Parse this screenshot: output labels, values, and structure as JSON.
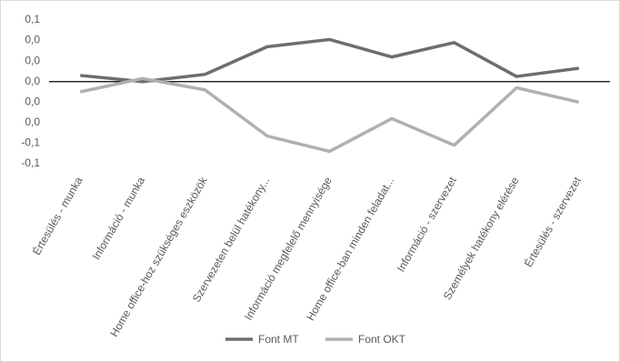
{
  "chart_data": {
    "type": "line",
    "categories": [
      "Értesülés - munka",
      "Információ - munka",
      "Home office-hoz szükséges eszközök",
      "Szervezeten belül hatékony...",
      "Információ megfelelő mennyisége",
      "Home office-ban minden feladat...",
      "Információ - szervezet",
      "Személyek hatékony elérése",
      "Értesülés - szervezet"
    ],
    "series": [
      {
        "name": "Font MT",
        "color": "#6d6d6d",
        "values": [
          0.006,
          0.0,
          0.007,
          0.034,
          0.041,
          0.024,
          0.038,
          0.005,
          0.013
        ]
      },
      {
        "name": "Font OKT",
        "color": "#b0b0b0",
        "values": [
          -0.01,
          0.003,
          -0.008,
          -0.053,
          -0.068,
          -0.036,
          -0.062,
          -0.006,
          -0.02
        ]
      }
    ],
    "ylim": [
      -0.08,
      0.06
    ],
    "yticks": [
      {
        "value": 0.06,
        "label": "0,1"
      },
      {
        "value": 0.04,
        "label": "0,0"
      },
      {
        "value": 0.02,
        "label": "0,0"
      },
      {
        "value": 0,
        "label": "0,0"
      },
      {
        "value": -0.02,
        "label": "0,0"
      },
      {
        "value": -0.04,
        "label": "0,0"
      },
      {
        "value": -0.06,
        "label": "-0,1"
      },
      {
        "value": -0.08,
        "label": "-0,1"
      }
    ],
    "legend": "bottom"
  }
}
